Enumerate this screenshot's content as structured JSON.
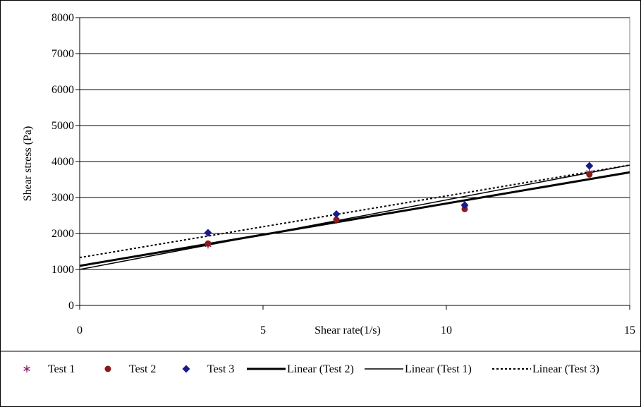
{
  "chart_data": {
    "type": "scatter",
    "xlabel": "Shear rate(1/s)",
    "ylabel": "Shear stress (Pa)",
    "xlim": [
      0,
      15
    ],
    "ylim": [
      0,
      8000
    ],
    "xticks": [
      0,
      5,
      10,
      15
    ],
    "yticks": [
      0,
      1000,
      2000,
      3000,
      4000,
      5000,
      6000,
      7000,
      8000
    ],
    "grid": "horizontal",
    "legend_position": "bottom",
    "series": [
      {
        "name": "Test 1",
        "marker": "asterisk",
        "color": "#8B1A6B",
        "x": [
          3.5,
          7.0,
          10.5,
          13.9
        ],
        "y": [
          1680,
          2370,
          2720,
          3700
        ]
      },
      {
        "name": "Test 2",
        "marker": "circle",
        "color": "#8B1A1A",
        "x": [
          3.5,
          7.0,
          10.5,
          13.9
        ],
        "y": [
          1720,
          2380,
          2680,
          3640
        ]
      },
      {
        "name": "Test 3",
        "marker": "diamond",
        "color": "#1A1A8B",
        "x": [
          3.5,
          7.0,
          10.5,
          13.9
        ],
        "y": [
          2020,
          2540,
          2790,
          3880
        ]
      }
    ],
    "trendlines": [
      {
        "name": "Linear (Test 2)",
        "style": "thick",
        "x": [
          0,
          15
        ],
        "y": [
          1100,
          3700
        ]
      },
      {
        "name": "Linear (Test 1)",
        "style": "thin",
        "x": [
          0,
          15
        ],
        "y": [
          1000,
          3900
        ]
      },
      {
        "name": "Linear (Test 3)",
        "style": "dotted",
        "x": [
          0,
          15
        ],
        "y": [
          1330,
          3900
        ]
      }
    ]
  }
}
